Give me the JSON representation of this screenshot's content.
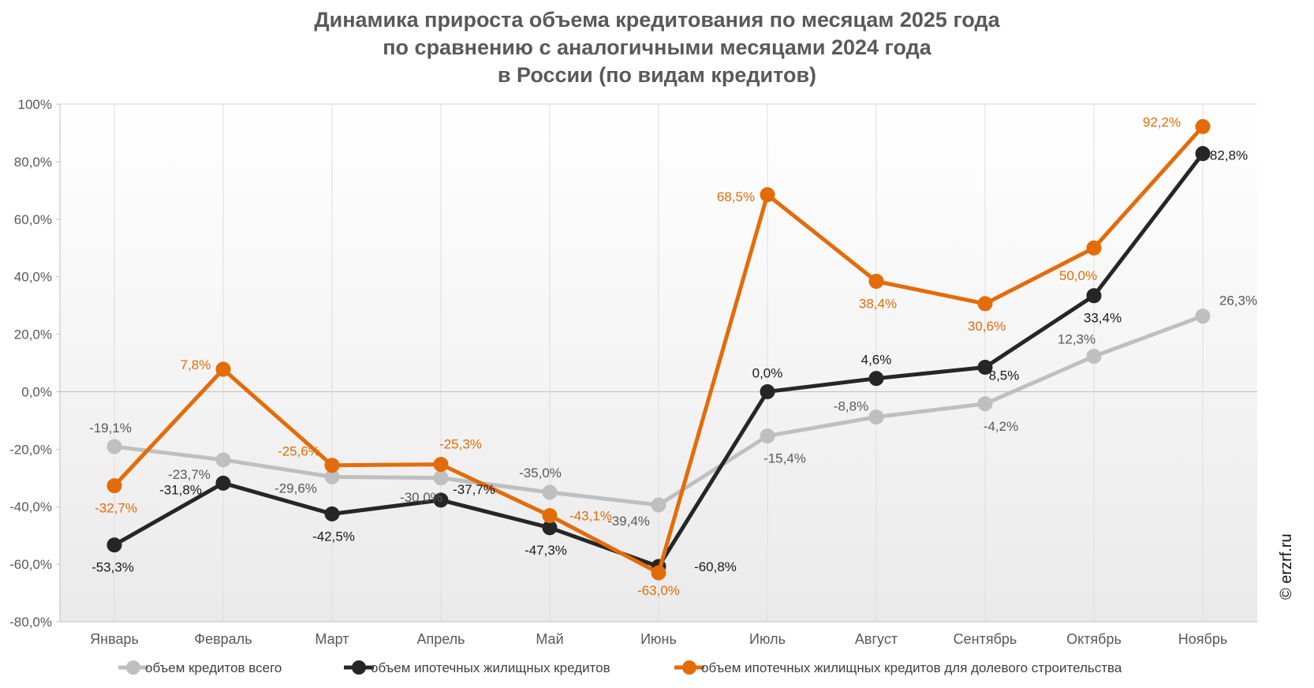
{
  "chart_data": {
    "type": "line",
    "title_lines": [
      "Динамика прироста объема кредитования по месяцам 2025 года",
      "по сравнению с аналогичными месяцами 2024 года",
      "в России (по видам кредитов)"
    ],
    "categories": [
      "Январь",
      "Февраль",
      "Март",
      "Апрель",
      "Май",
      "Июнь",
      "Июль",
      "Август",
      "Сентябрь",
      "Октябрь",
      "Ноябрь"
    ],
    "ylim": [
      -80,
      100
    ],
    "yticks": [
      100,
      80,
      60,
      40,
      20,
      0,
      -20,
      -40,
      -60,
      -80
    ],
    "ytick_labels": [
      "100%",
      "80,0%",
      "60,0%",
      "40,0%",
      "20,0%",
      "0,0%",
      "-20,0%",
      "-40,0%",
      "-60,0%",
      "-80,0%"
    ],
    "grid": "vertical",
    "legend_position": "bottom",
    "series": [
      {
        "name": "объем кредитов всего",
        "color": "#bfbfbf",
        "values": [
          -19.1,
          -23.7,
          -29.6,
          -30.0,
          -35.0,
          -39.4,
          -15.4,
          -8.8,
          -4.2,
          12.3,
          26.3
        ],
        "labels": [
          "-19,1%",
          "-23,7%",
          "-29,6%",
          "-30,0%",
          "-35,0%",
          "-39,4%",
          "-15,4%",
          "-8,8%",
          "-4,2%",
          "12,3%",
          "26,3%"
        ]
      },
      {
        "name": "объем ипотечных жилищных кредитов",
        "color": "#262626",
        "values": [
          -53.3,
          -31.8,
          -42.5,
          -37.7,
          -47.3,
          -60.8,
          0.0,
          4.6,
          8.5,
          33.4,
          82.8
        ],
        "labels": [
          "-53,3%",
          "-31,8%",
          "-42,5%",
          "-37,7%",
          "-47,3%",
          "-60,8%",
          "0,0%",
          "4,6%",
          "8,5%",
          "33,4%",
          "82,8%"
        ]
      },
      {
        "name": "объем ипотечных жилищных кредитов для долевого строительства",
        "color": "#e36c09",
        "values": [
          -32.7,
          7.8,
          -25.6,
          -25.3,
          -43.1,
          -63.0,
          68.5,
          38.4,
          30.6,
          50.0,
          92.2
        ],
        "labels": [
          "-32,7%",
          "7,8%",
          "-25,6%",
          "-25,3%",
          "-43,1%",
          "-63,0%",
          "68,5%",
          "38,4%",
          "30,6%",
          "50,0%",
          "92,2%"
        ]
      }
    ],
    "watermark": "© erzrf.ru"
  }
}
